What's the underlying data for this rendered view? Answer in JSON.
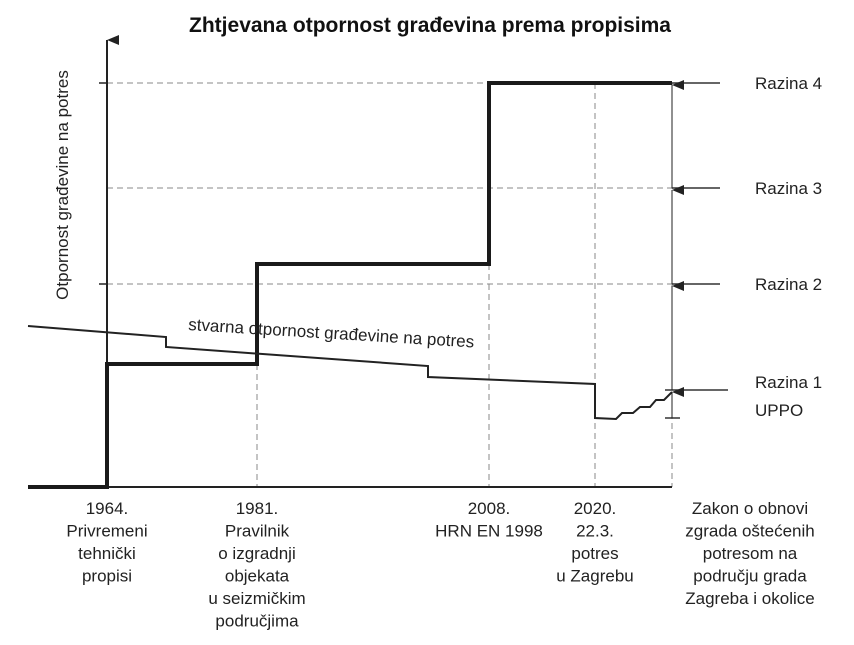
{
  "title": "Zhtjevana otpornost građevina prema propisima",
  "y_axis_label": "Otpornost građevine na potres",
  "curve_label": "stvarna otpornost građevine na potres",
  "levels": [
    "Razina 4",
    "Razina 3",
    "Razina 2",
    "Razina 1"
  ],
  "level1_sub": "UPPO",
  "milestones": [
    {
      "lines": [
        "1964.",
        "Privremeni",
        "tehnički",
        "propisi"
      ]
    },
    {
      "lines": [
        "1981.",
        "Pravilnik",
        "o izgradnji",
        "objekata",
        "u seizmičkim",
        "područjima"
      ]
    },
    {
      "lines": [
        "2008.",
        "HRN EN 1998"
      ]
    },
    {
      "lines": [
        "2020.",
        "22.3.",
        "potres",
        "u Zagrebu"
      ]
    },
    {
      "lines": [
        "Zakon o obnovi",
        "zgrada oštećenih",
        "potresom na",
        "području grada",
        "Zagreba i okolice"
      ]
    }
  ],
  "colors": {
    "lines": "#222222",
    "dashed": "#888888"
  }
}
